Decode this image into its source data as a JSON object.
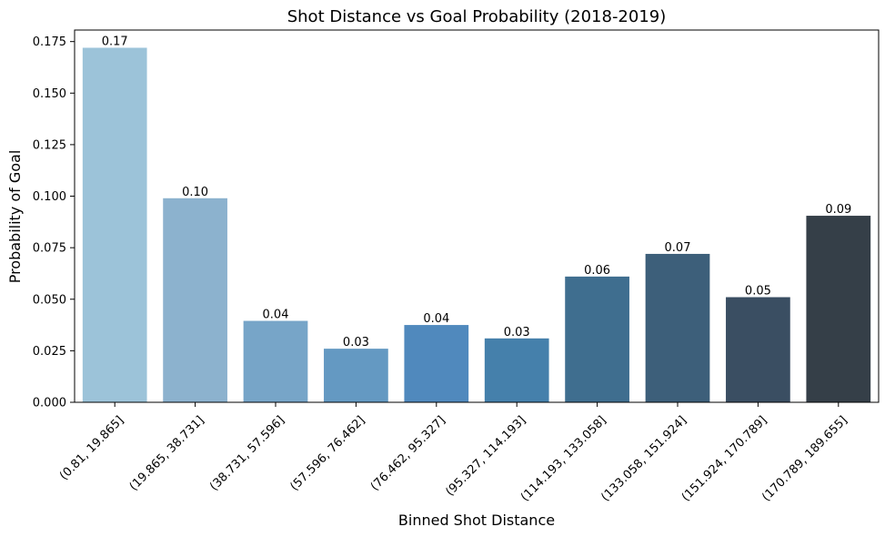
{
  "chart_data": {
    "type": "bar",
    "title": "Shot Distance vs Goal Probability (2018-2019)",
    "xlabel": "Binned Shot Distance",
    "ylabel": "Probability of Goal",
    "categories": [
      "(0.81, 19.865]",
      "(19.865, 38.731]",
      "(38.731, 57.596]",
      "(57.596, 76.462]",
      "(76.462, 95.327]",
      "(95.327, 114.193]",
      "(114.193, 133.058]",
      "(133.058, 151.924]",
      "(151.924, 170.789]",
      "(170.789, 189.655]"
    ],
    "values": [
      0.172,
      0.099,
      0.0395,
      0.026,
      0.0375,
      0.031,
      0.061,
      0.072,
      0.051,
      0.0905
    ],
    "data_labels": [
      "0.17",
      "0.10",
      "0.04",
      "0.03",
      "0.04",
      "0.03",
      "0.06",
      "0.07",
      "0.05",
      "0.09"
    ],
    "ylim": [
      0,
      0.1806
    ],
    "yticks": [
      0.0,
      0.025,
      0.05,
      0.075,
      0.1,
      0.125,
      0.15,
      0.175
    ],
    "ytick_labels": [
      "0.000",
      "0.025",
      "0.050",
      "0.075",
      "0.100",
      "0.125",
      "0.150",
      "0.175"
    ],
    "colors": [
      "#9cc3d9",
      "#8cb2ce",
      "#77a5c8",
      "#6499c2",
      "#5089bd",
      "#4580ab",
      "#3f6e8f",
      "#3d5f7a",
      "#3a4e62",
      "#353f48"
    ],
    "grid": false,
    "legend": "none"
  }
}
